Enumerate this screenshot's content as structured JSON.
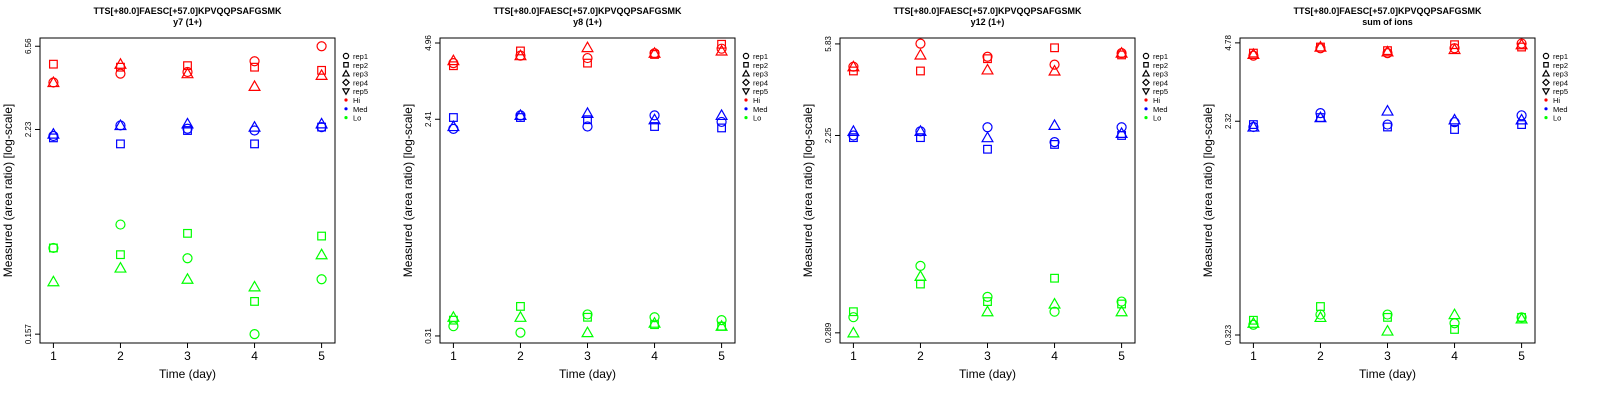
{
  "colors": {
    "Hi": "#ff0000",
    "Med": "#0000ff",
    "Lo": "#00ff00",
    "axis": "#000000"
  },
  "legend": {
    "replicates": [
      {
        "label": "rep1",
        "symbol": "circle"
      },
      {
        "label": "rep2",
        "symbol": "square"
      },
      {
        "label": "rep3",
        "symbol": "triangle-up"
      },
      {
        "label": "rep4",
        "symbol": "diamond"
      },
      {
        "label": "rep5",
        "symbol": "triangle-down"
      }
    ],
    "groups": [
      {
        "label": "Hi",
        "color": "#ff0000"
      },
      {
        "label": "Med",
        "color": "#0000ff"
      },
      {
        "label": "Lo",
        "color": "#00ff00"
      }
    ]
  },
  "chart_data": [
    {
      "type": "scatter",
      "title": "TTS[+80.0]FAESC[+57.0]KPVQQPSAFGSMK",
      "subtitle": "y7 (1+)",
      "xlabel": "Time (day)",
      "ylabel": "Measured (area ratio) [log-scale]",
      "x_ticks": [
        1,
        2,
        3,
        4,
        5
      ],
      "y_ticks": [
        "0.157",
        "2.23",
        "6.56"
      ],
      "y_tick_values": [
        0.157,
        2.23,
        6.56
      ],
      "log_y": true,
      "ylim": [
        0.14,
        7.3
      ],
      "xlim": [
        0.8,
        5.2
      ],
      "series": [
        {
          "group": "Hi",
          "rep": "rep1",
          "values": [
            4.1,
            4.6,
            4.7,
            5.4,
            6.56
          ]
        },
        {
          "group": "Hi",
          "rep": "rep2",
          "values": [
            5.2,
            5.0,
            5.1,
            5.0,
            4.8
          ]
        },
        {
          "group": "Hi",
          "rep": "rep3",
          "values": [
            4.1,
            5.2,
            4.6,
            3.9,
            4.5
          ]
        },
        {
          "group": "Med",
          "rep": "rep1",
          "values": [
            2.05,
            2.35,
            2.25,
            2.2,
            2.3
          ]
        },
        {
          "group": "Med",
          "rep": "rep2",
          "values": [
            2.0,
            1.85,
            2.2,
            1.85,
            2.3
          ]
        },
        {
          "group": "Med",
          "rep": "rep3",
          "values": [
            2.1,
            2.35,
            2.4,
            2.3,
            2.4
          ]
        },
        {
          "group": "Lo",
          "rep": "rep1",
          "values": [
            0.48,
            0.65,
            0.42,
            0.157,
            0.32
          ]
        },
        {
          "group": "Lo",
          "rep": "rep2",
          "values": [
            0.48,
            0.44,
            0.58,
            0.24,
            0.56
          ]
        },
        {
          "group": "Lo",
          "rep": "rep3",
          "values": [
            0.31,
            0.37,
            0.32,
            0.29,
            0.44
          ]
        }
      ]
    },
    {
      "type": "scatter",
      "title": "TTS[+80.0]FAESC[+57.0]KPVQQPSAFGSMK",
      "subtitle": "y8 (1+)",
      "xlabel": "Time (day)",
      "ylabel": "Measured (area ratio) [log-scale]",
      "x_ticks": [
        1,
        2,
        3,
        4,
        5
      ],
      "y_ticks": [
        "0.31",
        "2.41",
        "4.96"
      ],
      "y_tick_values": [
        0.31,
        2.41,
        4.96
      ],
      "log_y": true,
      "ylim": [
        0.29,
        5.2
      ],
      "xlim": [
        0.8,
        5.2
      ],
      "series": [
        {
          "group": "Hi",
          "rep": "rep1",
          "values": [
            4.1,
            4.4,
            4.3,
            4.5,
            4.7
          ]
        },
        {
          "group": "Hi",
          "rep": "rep2",
          "values": [
            4.0,
            4.6,
            4.1,
            4.45,
            4.9
          ]
        },
        {
          "group": "Hi",
          "rep": "rep3",
          "values": [
            4.2,
            4.4,
            4.75,
            4.5,
            4.6
          ]
        },
        {
          "group": "Med",
          "rep": "rep1",
          "values": [
            2.2,
            2.5,
            2.25,
            2.5,
            2.35
          ]
        },
        {
          "group": "Med",
          "rep": "rep2",
          "values": [
            2.45,
            2.45,
            2.4,
            2.25,
            2.22
          ]
        },
        {
          "group": "Med",
          "rep": "rep3",
          "values": [
            2.25,
            2.5,
            2.55,
            2.4,
            2.5
          ]
        },
        {
          "group": "Lo",
          "rep": "rep1",
          "values": [
            0.34,
            0.32,
            0.38,
            0.37,
            0.36
          ]
        },
        {
          "group": "Lo",
          "rep": "rep2",
          "values": [
            0.36,
            0.41,
            0.37,
            0.345,
            0.34
          ]
        },
        {
          "group": "Lo",
          "rep": "rep3",
          "values": [
            0.37,
            0.37,
            0.32,
            0.35,
            0.34
          ]
        }
      ]
    },
    {
      "type": "scatter",
      "title": "TTS[+80.0]FAESC[+57.0]KPVQQPSAFGSMK",
      "subtitle": "y12 (1+)",
      "xlabel": "Time (day)",
      "ylabel": "Measured (area ratio) [log-scale]",
      "x_ticks": [
        1,
        2,
        3,
        4,
        5
      ],
      "y_ticks": [
        "0.289",
        "2.25",
        "5.83"
      ],
      "y_tick_values": [
        0.289,
        2.25,
        5.83
      ],
      "log_y": true,
      "ylim": [
        0.26,
        6.2
      ],
      "xlim": [
        0.8,
        5.2
      ],
      "series": [
        {
          "group": "Hi",
          "rep": "rep1",
          "values": [
            4.6,
            5.85,
            5.1,
            4.7,
            5.3
          ]
        },
        {
          "group": "Hi",
          "rep": "rep2",
          "values": [
            4.4,
            4.4,
            5.0,
            5.6,
            5.2
          ]
        },
        {
          "group": "Hi",
          "rep": "rep3",
          "values": [
            4.6,
            5.2,
            4.45,
            4.4,
            5.3
          ]
        },
        {
          "group": "Med",
          "rep": "rep1",
          "values": [
            2.25,
            2.35,
            2.45,
            2.1,
            2.45
          ]
        },
        {
          "group": "Med",
          "rep": "rep2",
          "values": [
            2.2,
            2.2,
            1.95,
            2.05,
            2.25
          ]
        },
        {
          "group": "Med",
          "rep": "rep3",
          "values": [
            2.35,
            2.35,
            2.2,
            2.5,
            2.3
          ]
        },
        {
          "group": "Lo",
          "rep": "rep1",
          "values": [
            0.34,
            0.58,
            0.42,
            0.36,
            0.4
          ]
        },
        {
          "group": "Lo",
          "rep": "rep2",
          "values": [
            0.36,
            0.48,
            0.4,
            0.51,
            0.39
          ]
        },
        {
          "group": "Lo",
          "rep": "rep3",
          "values": [
            0.289,
            0.52,
            0.36,
            0.39,
            0.36
          ]
        }
      ]
    },
    {
      "type": "scatter",
      "title": "TTS[+80.0]FAESC[+57.0]KPVQQPSAFGSMK",
      "subtitle": "sum of ions",
      "xlabel": "Time (day)",
      "ylabel": "Measured (area ratio) [log-scale]",
      "x_ticks": [
        1,
        2,
        3,
        4,
        5
      ],
      "y_ticks": [
        "0.323",
        "2.32",
        "4.78"
      ],
      "y_tick_values": [
        0.323,
        2.32,
        4.78
      ],
      "log_y": true,
      "ylim": [
        0.3,
        5.0
      ],
      "xlim": [
        0.8,
        5.2
      ],
      "series": [
        {
          "group": "Hi",
          "rep": "rep1",
          "values": [
            4.25,
            4.55,
            4.35,
            4.55,
            4.75
          ]
        },
        {
          "group": "Hi",
          "rep": "rep2",
          "values": [
            4.35,
            4.6,
            4.45,
            4.7,
            4.6
          ]
        },
        {
          "group": "Hi",
          "rep": "rep3",
          "values": [
            4.3,
            4.6,
            4.4,
            4.5,
            4.7
          ]
        },
        {
          "group": "Med",
          "rep": "rep1",
          "values": [
            2.2,
            2.5,
            2.25,
            2.3,
            2.45
          ]
        },
        {
          "group": "Med",
          "rep": "rep2",
          "values": [
            2.25,
            2.4,
            2.2,
            2.15,
            2.25
          ]
        },
        {
          "group": "Med",
          "rep": "rep3",
          "values": [
            2.2,
            2.4,
            2.55,
            2.35,
            2.35
          ]
        },
        {
          "group": "Lo",
          "rep": "rep1",
          "values": [
            0.355,
            0.39,
            0.39,
            0.36,
            0.38
          ]
        },
        {
          "group": "Lo",
          "rep": "rep2",
          "values": [
            0.37,
            0.42,
            0.38,
            0.34,
            0.38
          ]
        },
        {
          "group": "Lo",
          "rep": "rep3",
          "values": [
            0.36,
            0.38,
            0.335,
            0.39,
            0.375
          ]
        }
      ]
    }
  ]
}
